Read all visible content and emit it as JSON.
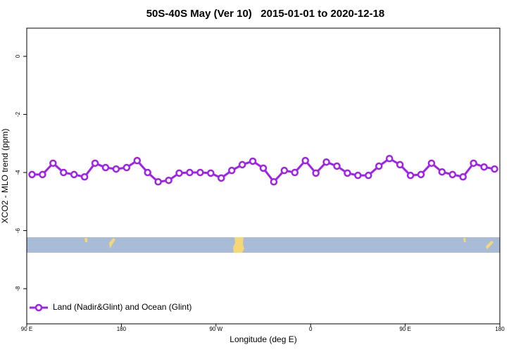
{
  "chart_data": {
    "type": "line",
    "title": "50S-40S May (Ver 10)   2015-01-01 to 2020-12-18",
    "x_label": "Longitude (deg E)",
    "y_label": "XCO2 - MLO trend (ppm)",
    "x": [
      95,
      105,
      115,
      125,
      135,
      145,
      155,
      165,
      175,
      185,
      195,
      205,
      215,
      225,
      235,
      245,
      255,
      265,
      275,
      285,
      295,
      305,
      315,
      325,
      335,
      345,
      355,
      365,
      375,
      385,
      395,
      405,
      415,
      425,
      435,
      445,
      455,
      465,
      475,
      485,
      495,
      505,
      515,
      525,
      535
    ],
    "series": [
      {
        "name": "Land (Nadir&Glint) and Ocean (Glint)",
        "color": "#a020f0",
        "values": [
          -4.07,
          -4.07,
          -3.68,
          -4.0,
          -4.07,
          -4.15,
          -3.68,
          -3.83,
          -3.88,
          -3.83,
          -3.59,
          -4.0,
          -4.32,
          -4.27,
          -4.02,
          -4.0,
          -4.0,
          -4.02,
          -4.19,
          -3.93,
          -3.73,
          -3.61,
          -3.85,
          -4.32,
          -3.93,
          -4.0,
          -3.59,
          -4.02,
          -3.64,
          -3.78,
          -4.02,
          -4.1,
          -4.1,
          -3.78,
          -3.52,
          -3.73,
          -4.1,
          -4.07,
          -3.68,
          -3.98,
          -4.07,
          -4.15,
          -3.68,
          -3.81,
          -3.88
        ]
      }
    ],
    "xlim": [
      90,
      540
    ],
    "xticks": [
      {
        "value": 90,
        "label": "90 E"
      },
      180,
      {
        "value": 270,
        "label": "90 W"
      },
      {
        "value": 360,
        "label": "0"
      },
      {
        "value": 450,
        "label": "90 E"
      },
      {
        "value": 540,
        "label": "180"
      }
    ],
    "ylim": [
      -9.21,
      0.97
    ],
    "yticks": [
      0,
      -2,
      -4,
      -6,
      -8
    ],
    "legend": "bottom-left"
  }
}
